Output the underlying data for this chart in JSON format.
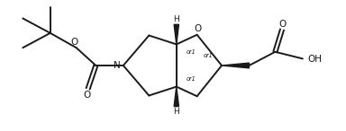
{
  "background_color": "#ffffff",
  "line_color": "#1a1a1a",
  "line_width": 1.4,
  "font_size": 6.5,
  "figsize": [
    3.84,
    1.46
  ],
  "dpi": 100,
  "xlim": [
    0,
    10
  ],
  "ylim": [
    0,
    3.8
  ]
}
